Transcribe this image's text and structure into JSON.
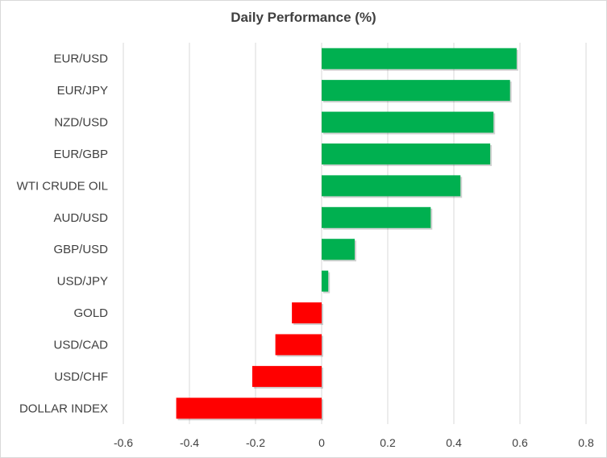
{
  "chart_data": {
    "type": "bar",
    "orientation": "horizontal",
    "title": "Daily Performance (%)",
    "xlabel": "",
    "ylabel": "",
    "categories": [
      "EUR/USD",
      "EUR/JPY",
      "NZD/USD",
      "EUR/GBP",
      "WTI CRUDE OIL",
      "AUD/USD",
      "GBP/USD",
      "USD/JPY",
      "GOLD",
      "USD/CAD",
      "USD/CHF",
      "DOLLAR INDEX"
    ],
    "values": [
      0.59,
      0.57,
      0.52,
      0.51,
      0.42,
      0.33,
      0.1,
      0.02,
      -0.09,
      -0.14,
      -0.21,
      -0.44
    ],
    "xlim": [
      -0.6,
      0.8
    ],
    "xticks": [
      "-0.6",
      "-0.4",
      "-0.2",
      "0",
      "0.2",
      "0.4",
      "0.6",
      "0.8"
    ],
    "grid": "vertical",
    "legend": "none",
    "colors": {
      "positive": "#00b050",
      "negative": "#ff0000",
      "gridline": "#d9d9d9",
      "text": "#404040"
    }
  }
}
